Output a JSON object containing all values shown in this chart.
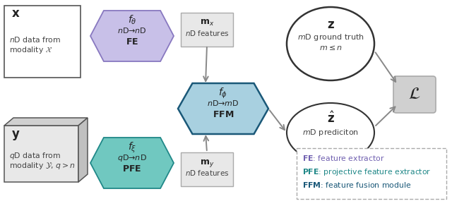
{
  "bg_color": "#ffffff",
  "fe_arrow_color": "#c8c0e8",
  "fe_arrow_edge": "#8878c0",
  "pfe_arrow_color": "#70c8c0",
  "pfe_arrow_edge": "#208888",
  "ffm_arrow_color": "#a8d0e0",
  "ffm_arrow_edge": "#1a5878",
  "box_fill": "#f0f0f0",
  "box_edge": "#555555",
  "cube_front": "#e8e8e8",
  "cube_top": "#d0d0d0",
  "cube_right": "#c0c0c0",
  "cube_edge": "#555555",
  "feat_box_fill": "#e8e8e8",
  "feat_box_edge": "#aaaaaa",
  "circle_fill": "#ffffff",
  "circle_edge": "#333333",
  "loss_fill": "#d0d0d0",
  "loss_edge": "#aaaaaa",
  "arrow_color": "#888888",
  "legend_fe_color": "#7060b0",
  "legend_pfe_color": "#208888",
  "legend_ffm_color": "#1a5878",
  "text_dark": "#222222",
  "text_mid": "#444444",
  "ffm_text": "#222222"
}
